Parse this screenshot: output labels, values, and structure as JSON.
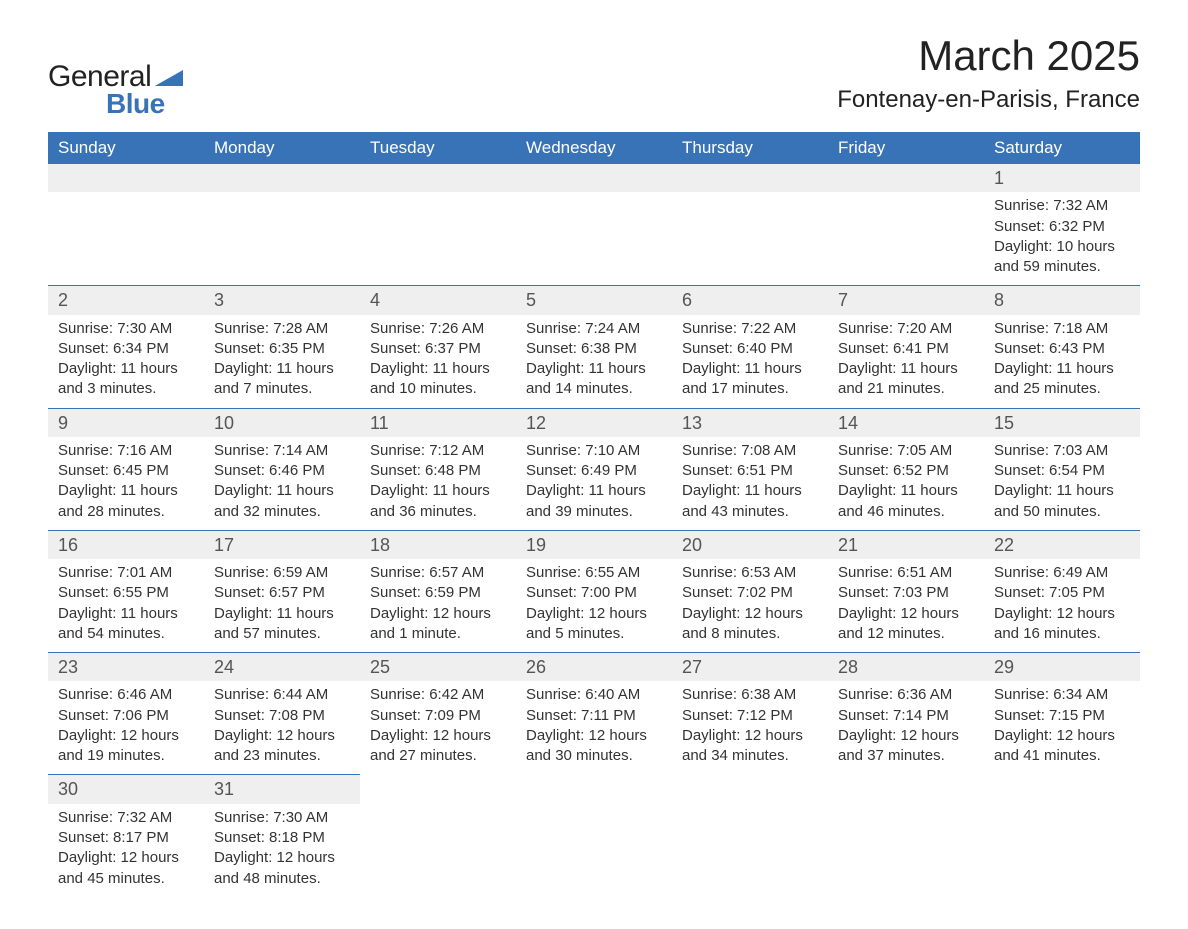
{
  "logo": {
    "text_general": "General",
    "text_blue": "Blue",
    "icon_color": "#3973b7"
  },
  "title": "March 2025",
  "location": "Fontenay-en-Parisis, France",
  "colors": {
    "header_bg": "#3973b7",
    "header_text": "#ffffff",
    "daynum_bg": "#efefef",
    "daynum_text": "#555555",
    "border": "#3973b7",
    "body_text": "#333333",
    "page_bg": "#ffffff"
  },
  "typography": {
    "title_fontsize": 42,
    "location_fontsize": 24,
    "dayheader_fontsize": 17,
    "cell_fontsize": 15,
    "daynum_fontsize": 18
  },
  "day_headers": [
    "Sunday",
    "Monday",
    "Tuesday",
    "Wednesday",
    "Thursday",
    "Friday",
    "Saturday"
  ],
  "weeks": [
    [
      null,
      null,
      null,
      null,
      null,
      null,
      {
        "num": "1",
        "sunrise": "Sunrise: 7:32 AM",
        "sunset": "Sunset: 6:32 PM",
        "daylight": "Daylight: 10 hours and 59 minutes."
      }
    ],
    [
      {
        "num": "2",
        "sunrise": "Sunrise: 7:30 AM",
        "sunset": "Sunset: 6:34 PM",
        "daylight": "Daylight: 11 hours and 3 minutes."
      },
      {
        "num": "3",
        "sunrise": "Sunrise: 7:28 AM",
        "sunset": "Sunset: 6:35 PM",
        "daylight": "Daylight: 11 hours and 7 minutes."
      },
      {
        "num": "4",
        "sunrise": "Sunrise: 7:26 AM",
        "sunset": "Sunset: 6:37 PM",
        "daylight": "Daylight: 11 hours and 10 minutes."
      },
      {
        "num": "5",
        "sunrise": "Sunrise: 7:24 AM",
        "sunset": "Sunset: 6:38 PM",
        "daylight": "Daylight: 11 hours and 14 minutes."
      },
      {
        "num": "6",
        "sunrise": "Sunrise: 7:22 AM",
        "sunset": "Sunset: 6:40 PM",
        "daylight": "Daylight: 11 hours and 17 minutes."
      },
      {
        "num": "7",
        "sunrise": "Sunrise: 7:20 AM",
        "sunset": "Sunset: 6:41 PM",
        "daylight": "Daylight: 11 hours and 21 minutes."
      },
      {
        "num": "8",
        "sunrise": "Sunrise: 7:18 AM",
        "sunset": "Sunset: 6:43 PM",
        "daylight": "Daylight: 11 hours and 25 minutes."
      }
    ],
    [
      {
        "num": "9",
        "sunrise": "Sunrise: 7:16 AM",
        "sunset": "Sunset: 6:45 PM",
        "daylight": "Daylight: 11 hours and 28 minutes."
      },
      {
        "num": "10",
        "sunrise": "Sunrise: 7:14 AM",
        "sunset": "Sunset: 6:46 PM",
        "daylight": "Daylight: 11 hours and 32 minutes."
      },
      {
        "num": "11",
        "sunrise": "Sunrise: 7:12 AM",
        "sunset": "Sunset: 6:48 PM",
        "daylight": "Daylight: 11 hours and 36 minutes."
      },
      {
        "num": "12",
        "sunrise": "Sunrise: 7:10 AM",
        "sunset": "Sunset: 6:49 PM",
        "daylight": "Daylight: 11 hours and 39 minutes."
      },
      {
        "num": "13",
        "sunrise": "Sunrise: 7:08 AM",
        "sunset": "Sunset: 6:51 PM",
        "daylight": "Daylight: 11 hours and 43 minutes."
      },
      {
        "num": "14",
        "sunrise": "Sunrise: 7:05 AM",
        "sunset": "Sunset: 6:52 PM",
        "daylight": "Daylight: 11 hours and 46 minutes."
      },
      {
        "num": "15",
        "sunrise": "Sunrise: 7:03 AM",
        "sunset": "Sunset: 6:54 PM",
        "daylight": "Daylight: 11 hours and 50 minutes."
      }
    ],
    [
      {
        "num": "16",
        "sunrise": "Sunrise: 7:01 AM",
        "sunset": "Sunset: 6:55 PM",
        "daylight": "Daylight: 11 hours and 54 minutes."
      },
      {
        "num": "17",
        "sunrise": "Sunrise: 6:59 AM",
        "sunset": "Sunset: 6:57 PM",
        "daylight": "Daylight: 11 hours and 57 minutes."
      },
      {
        "num": "18",
        "sunrise": "Sunrise: 6:57 AM",
        "sunset": "Sunset: 6:59 PM",
        "daylight": "Daylight: 12 hours and 1 minute."
      },
      {
        "num": "19",
        "sunrise": "Sunrise: 6:55 AM",
        "sunset": "Sunset: 7:00 PM",
        "daylight": "Daylight: 12 hours and 5 minutes."
      },
      {
        "num": "20",
        "sunrise": "Sunrise: 6:53 AM",
        "sunset": "Sunset: 7:02 PM",
        "daylight": "Daylight: 12 hours and 8 minutes."
      },
      {
        "num": "21",
        "sunrise": "Sunrise: 6:51 AM",
        "sunset": "Sunset: 7:03 PM",
        "daylight": "Daylight: 12 hours and 12 minutes."
      },
      {
        "num": "22",
        "sunrise": "Sunrise: 6:49 AM",
        "sunset": "Sunset: 7:05 PM",
        "daylight": "Daylight: 12 hours and 16 minutes."
      }
    ],
    [
      {
        "num": "23",
        "sunrise": "Sunrise: 6:46 AM",
        "sunset": "Sunset: 7:06 PM",
        "daylight": "Daylight: 12 hours and 19 minutes."
      },
      {
        "num": "24",
        "sunrise": "Sunrise: 6:44 AM",
        "sunset": "Sunset: 7:08 PM",
        "daylight": "Daylight: 12 hours and 23 minutes."
      },
      {
        "num": "25",
        "sunrise": "Sunrise: 6:42 AM",
        "sunset": "Sunset: 7:09 PM",
        "daylight": "Daylight: 12 hours and 27 minutes."
      },
      {
        "num": "26",
        "sunrise": "Sunrise: 6:40 AM",
        "sunset": "Sunset: 7:11 PM",
        "daylight": "Daylight: 12 hours and 30 minutes."
      },
      {
        "num": "27",
        "sunrise": "Sunrise: 6:38 AM",
        "sunset": "Sunset: 7:12 PM",
        "daylight": "Daylight: 12 hours and 34 minutes."
      },
      {
        "num": "28",
        "sunrise": "Sunrise: 6:36 AM",
        "sunset": "Sunset: 7:14 PM",
        "daylight": "Daylight: 12 hours and 37 minutes."
      },
      {
        "num": "29",
        "sunrise": "Sunrise: 6:34 AM",
        "sunset": "Sunset: 7:15 PM",
        "daylight": "Daylight: 12 hours and 41 minutes."
      }
    ],
    [
      {
        "num": "30",
        "sunrise": "Sunrise: 7:32 AM",
        "sunset": "Sunset: 8:17 PM",
        "daylight": "Daylight: 12 hours and 45 minutes."
      },
      {
        "num": "31",
        "sunrise": "Sunrise: 7:30 AM",
        "sunset": "Sunset: 8:18 PM",
        "daylight": "Daylight: 12 hours and 48 minutes."
      },
      null,
      null,
      null,
      null,
      null
    ]
  ]
}
